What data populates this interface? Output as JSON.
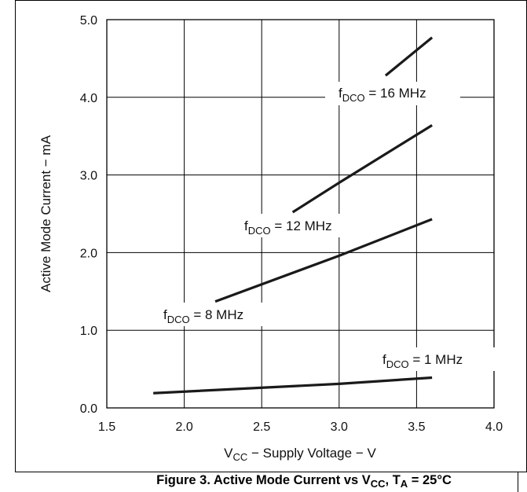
{
  "chart_data": {
    "type": "line",
    "title": "",
    "caption": {
      "prefix": "Figure 3. Active Mode Current vs V",
      "sub1": "CC",
      "mid": ", T",
      "sub2": "A",
      "suffix": " = 25°C"
    },
    "xlabel": {
      "main": "V",
      "sub": "CC",
      "rest": " − Supply Voltage − V"
    },
    "ylabel": "Active Mode Current − mA",
    "xlim": [
      1.5,
      4.0
    ],
    "ylim": [
      0.0,
      5.0
    ],
    "xticks": [
      "1.5",
      "2.0",
      "2.5",
      "3.0",
      "3.5",
      "4.0"
    ],
    "yticks": [
      "0.0",
      "1.0",
      "2.0",
      "3.0",
      "4.0",
      "5.0"
    ],
    "grid": true,
    "series": [
      {
        "name": "f_DCO = 16 MHz",
        "label": {
          "f": "f",
          "sub": "DCO",
          "rest": " = 16 MHz"
        },
        "x": [
          3.3,
          3.6
        ],
        "y": [
          4.28,
          4.77
        ]
      },
      {
        "name": "f_DCO = 12 MHz",
        "label": {
          "f": "f",
          "sub": "DCO",
          "rest": " = 12 MHz"
        },
        "x": [
          2.7,
          3.0,
          3.6
        ],
        "y": [
          2.52,
          2.9,
          3.64
        ]
      },
      {
        "name": "f_DCO = 8 MHz",
        "label": {
          "f": "f",
          "sub": "DCO",
          "rest": " = 8 MHz"
        },
        "x": [
          2.2,
          3.0,
          3.6
        ],
        "y": [
          1.37,
          1.96,
          2.43
        ]
      },
      {
        "name": "f_DCO = 1 MHz",
        "label": {
          "f": "f",
          "sub": "DCO",
          "rest": " = 1 MHz"
        },
        "x": [
          1.8,
          3.0,
          3.6
        ],
        "y": [
          0.19,
          0.31,
          0.39
        ]
      }
    ]
  }
}
